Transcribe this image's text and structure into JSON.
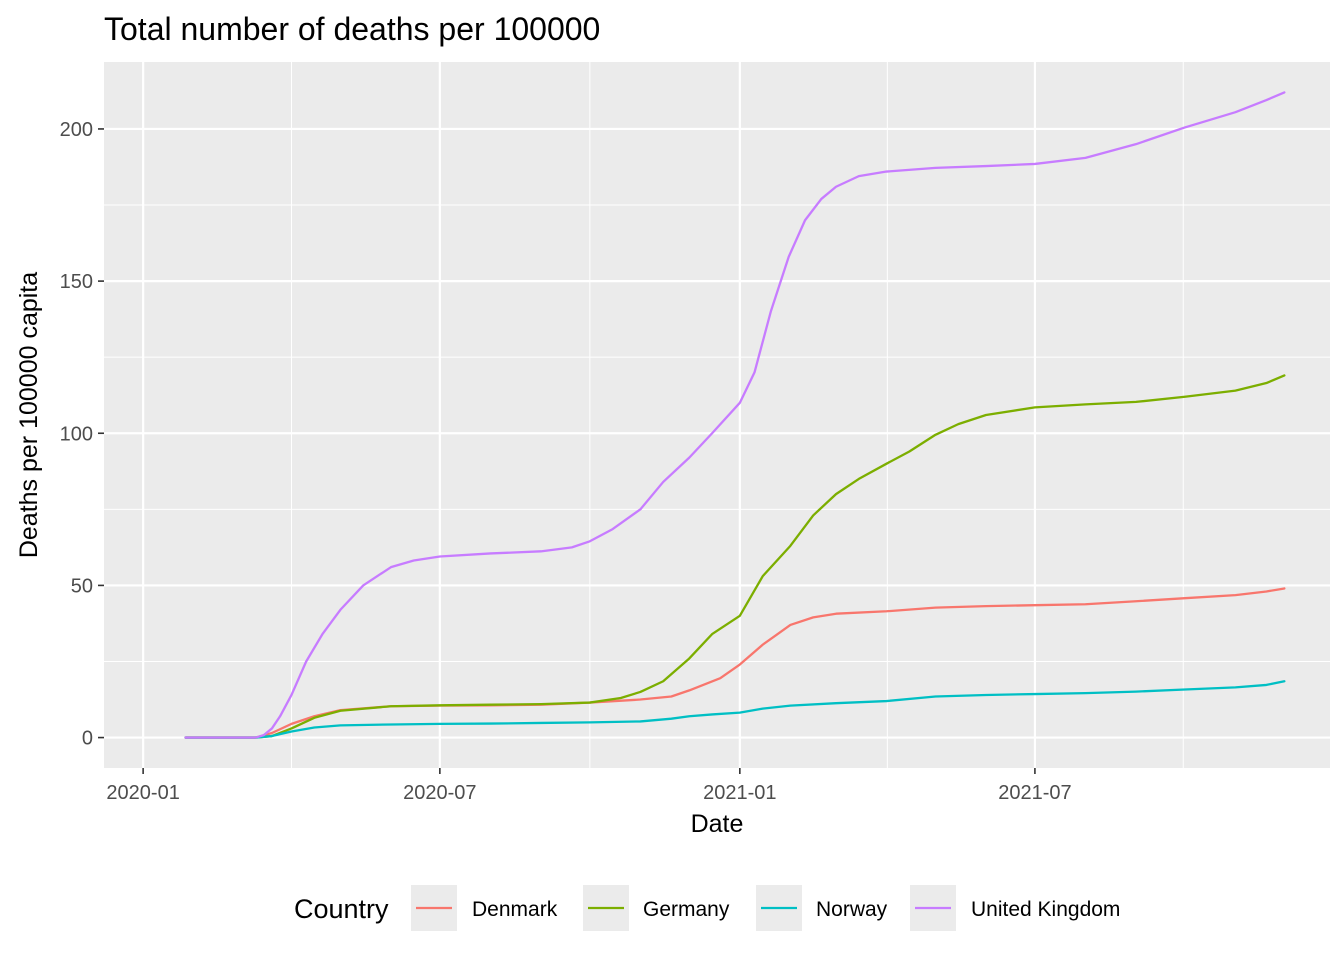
{
  "chart_data": {
    "type": "line",
    "title": "Total number of deaths per 100000",
    "xlabel": "Date",
    "ylabel": "Deaths per 100000 capita",
    "x_ticks": [
      "2020-01",
      "2020-07",
      "2021-01",
      "2021-07"
    ],
    "y_ticks": [
      0,
      50,
      100,
      150,
      200
    ],
    "xlim": [
      "2019-12-08",
      "2021-12-29"
    ],
    "ylim": [
      -10,
      222
    ],
    "grid": true,
    "legend": {
      "title": "Country",
      "position": "bottom",
      "entries": [
        "Denmark",
        "Germany",
        "Norway",
        "United Kingdom"
      ]
    },
    "colors": {
      "Denmark": "#F8766D",
      "Germany": "#7CAE00",
      "Norway": "#00BFC4",
      "United Kingdom": "#C77CFF"
    },
    "series": [
      {
        "name": "Denmark",
        "points": [
          [
            "2020-01-27",
            0
          ],
          [
            "2020-03-10",
            0
          ],
          [
            "2020-03-20",
            1.5
          ],
          [
            "2020-04-01",
            4.5
          ],
          [
            "2020-04-15",
            7
          ],
          [
            "2020-05-01",
            9
          ],
          [
            "2020-06-01",
            10.3
          ],
          [
            "2020-07-01",
            10.5
          ],
          [
            "2020-08-01",
            10.6
          ],
          [
            "2020-09-01",
            10.8
          ],
          [
            "2020-10-01",
            11.5
          ],
          [
            "2020-11-01",
            12.5
          ],
          [
            "2020-11-20",
            13.5
          ],
          [
            "2020-12-01",
            15.5
          ],
          [
            "2020-12-20",
            19.5
          ],
          [
            "2021-01-01",
            24
          ],
          [
            "2021-01-15",
            30.5
          ],
          [
            "2021-02-01",
            37
          ],
          [
            "2021-02-15",
            39.5
          ],
          [
            "2021-03-01",
            40.7
          ],
          [
            "2021-04-01",
            41.5
          ],
          [
            "2021-05-01",
            42.7
          ],
          [
            "2021-06-01",
            43.2
          ],
          [
            "2021-07-01",
            43.5
          ],
          [
            "2021-08-01",
            43.8
          ],
          [
            "2021-09-01",
            44.8
          ],
          [
            "2021-10-01",
            45.8
          ],
          [
            "2021-11-01",
            46.8
          ],
          [
            "2021-11-20",
            48
          ],
          [
            "2021-12-01",
            49
          ]
        ]
      },
      {
        "name": "Germany",
        "points": [
          [
            "2020-01-27",
            0
          ],
          [
            "2020-03-10",
            0
          ],
          [
            "2020-03-20",
            0.5
          ],
          [
            "2020-04-01",
            3
          ],
          [
            "2020-04-15",
            6.5
          ],
          [
            "2020-05-01",
            8.8
          ],
          [
            "2020-06-01",
            10.3
          ],
          [
            "2020-07-01",
            10.6
          ],
          [
            "2020-08-01",
            10.8
          ],
          [
            "2020-09-01",
            11
          ],
          [
            "2020-10-01",
            11.5
          ],
          [
            "2020-10-20",
            13
          ],
          [
            "2020-11-01",
            15
          ],
          [
            "2020-11-15",
            18.5
          ],
          [
            "2020-12-01",
            26
          ],
          [
            "2020-12-15",
            34
          ],
          [
            "2021-01-01",
            40
          ],
          [
            "2021-01-15",
            53
          ],
          [
            "2021-02-01",
            63
          ],
          [
            "2021-02-15",
            73
          ],
          [
            "2021-03-01",
            80
          ],
          [
            "2021-03-15",
            85
          ],
          [
            "2021-04-01",
            90
          ],
          [
            "2021-04-15",
            94
          ],
          [
            "2021-05-01",
            99.5
          ],
          [
            "2021-05-15",
            103
          ],
          [
            "2021-06-01",
            106
          ],
          [
            "2021-07-01",
            108.5
          ],
          [
            "2021-08-01",
            109.5
          ],
          [
            "2021-09-01",
            110.3
          ],
          [
            "2021-10-01",
            112
          ],
          [
            "2021-11-01",
            114
          ],
          [
            "2021-11-20",
            116.5
          ],
          [
            "2021-12-01",
            119
          ]
        ]
      },
      {
        "name": "Norway",
        "points": [
          [
            "2020-01-27",
            0
          ],
          [
            "2020-03-10",
            0
          ],
          [
            "2020-03-20",
            0.5
          ],
          [
            "2020-04-01",
            2
          ],
          [
            "2020-04-15",
            3.3
          ],
          [
            "2020-05-01",
            4
          ],
          [
            "2020-06-01",
            4.3
          ],
          [
            "2020-07-01",
            4.5
          ],
          [
            "2020-08-01",
            4.6
          ],
          [
            "2020-09-01",
            4.8
          ],
          [
            "2020-10-01",
            5
          ],
          [
            "2020-11-01",
            5.3
          ],
          [
            "2020-11-20",
            6.2
          ],
          [
            "2020-12-01",
            7
          ],
          [
            "2020-12-15",
            7.6
          ],
          [
            "2021-01-01",
            8.2
          ],
          [
            "2021-01-15",
            9.5
          ],
          [
            "2021-02-01",
            10.5
          ],
          [
            "2021-03-01",
            11.3
          ],
          [
            "2021-04-01",
            12
          ],
          [
            "2021-05-01",
            13.5
          ],
          [
            "2021-06-01",
            14
          ],
          [
            "2021-07-01",
            14.3
          ],
          [
            "2021-08-01",
            14.6
          ],
          [
            "2021-09-01",
            15.1
          ],
          [
            "2021-10-01",
            15.8
          ],
          [
            "2021-11-01",
            16.5
          ],
          [
            "2021-11-20",
            17.3
          ],
          [
            "2021-12-01",
            18.5
          ]
        ]
      },
      {
        "name": "United Kingdom",
        "points": [
          [
            "2020-01-27",
            0
          ],
          [
            "2020-03-10",
            0
          ],
          [
            "2020-03-15",
            0.8
          ],
          [
            "2020-03-20",
            3
          ],
          [
            "2020-03-25",
            7
          ],
          [
            "2020-04-01",
            14
          ],
          [
            "2020-04-10",
            25
          ],
          [
            "2020-04-20",
            34
          ],
          [
            "2020-05-01",
            42
          ],
          [
            "2020-05-15",
            50
          ],
          [
            "2020-06-01",
            56
          ],
          [
            "2020-06-15",
            58.2
          ],
          [
            "2020-07-01",
            59.5
          ],
          [
            "2020-08-01",
            60.5
          ],
          [
            "2020-09-01",
            61.2
          ],
          [
            "2020-09-20",
            62.5
          ],
          [
            "2020-10-01",
            64.5
          ],
          [
            "2020-10-15",
            68.5
          ],
          [
            "2020-11-01",
            75
          ],
          [
            "2020-11-15",
            84
          ],
          [
            "2020-12-01",
            92
          ],
          [
            "2020-12-15",
            100
          ],
          [
            "2021-01-01",
            110
          ],
          [
            "2021-01-10",
            120
          ],
          [
            "2021-01-20",
            140
          ],
          [
            "2021-01-31",
            158
          ],
          [
            "2021-02-10",
            170
          ],
          [
            "2021-02-20",
            177
          ],
          [
            "2021-03-01",
            181
          ],
          [
            "2021-03-15",
            184.5
          ],
          [
            "2021-04-01",
            186
          ],
          [
            "2021-05-01",
            187.2
          ],
          [
            "2021-06-01",
            187.8
          ],
          [
            "2021-07-01",
            188.5
          ],
          [
            "2021-08-01",
            190.5
          ],
          [
            "2021-09-01",
            195
          ],
          [
            "2021-10-01",
            200.5
          ],
          [
            "2021-11-01",
            205.5
          ],
          [
            "2021-11-20",
            209.5
          ],
          [
            "2021-12-01",
            212
          ]
        ]
      }
    ]
  }
}
